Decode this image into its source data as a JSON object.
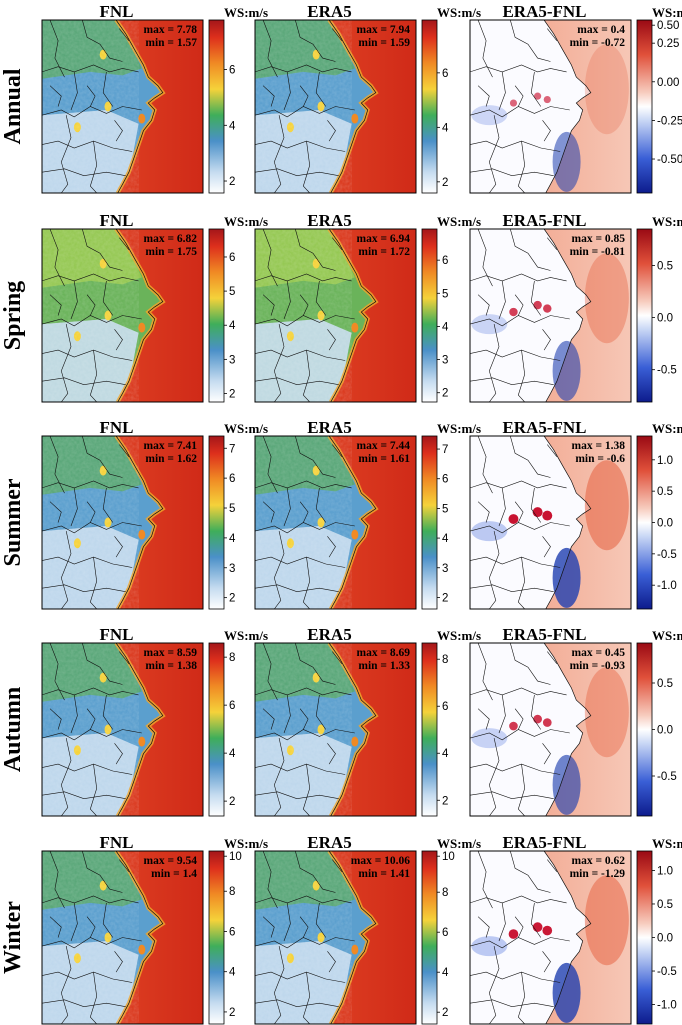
{
  "chart_data": {
    "type": "heatmap",
    "rows": [
      "Annual",
      "Spring",
      "Summer",
      "Autumn",
      "Winter"
    ],
    "columns": [
      "FNL",
      "ERA5",
      "ERA5-FNL"
    ],
    "colorbar_unit": "WS:m/s",
    "colors": {
      "sea": "#e03a1e",
      "land_low": "#c9ddf0",
      "land_mid": "#5b9fce",
      "coast": "#6ab35a",
      "diff_pos": "#c8102e",
      "diff_neg": "#1f3fb0",
      "diff_zero": "#ffffff",
      "boundary": "#111111"
    },
    "panels": [
      {
        "row": "Annual",
        "column": "FNL",
        "max": "max = 7.78",
        "min": "min = 1.57",
        "cbar_ticks": [
          "2",
          "4",
          "6"
        ],
        "range": [
          1.57,
          7.78
        ],
        "land_level": 0.28
      },
      {
        "row": "Annual",
        "column": "ERA5",
        "max": "max = 7.94",
        "min": "min = 1.59",
        "cbar_ticks": [
          "2",
          "4",
          "6"
        ],
        "range": [
          1.59,
          7.94
        ],
        "land_level": 0.28
      },
      {
        "row": "Annual",
        "column": "ERA5-FNL",
        "max": "max = 0.4",
        "min": "min = -0.72",
        "cbar_ticks": [
          "0.50",
          "0.25",
          "0.00",
          "-0.25",
          "-0.50"
        ],
        "range": [
          -0.72,
          0.4
        ],
        "land_level": 0.5
      },
      {
        "row": "Spring",
        "column": "FNL",
        "max": "max = 6.82",
        "min": "min = 1.75",
        "cbar_ticks": [
          "2",
          "3",
          "4",
          "5",
          "6"
        ],
        "range": [
          1.75,
          6.82
        ],
        "land_level": 0.38
      },
      {
        "row": "Spring",
        "column": "ERA5",
        "max": "max = 6.94",
        "min": "min = 1.72",
        "cbar_ticks": [
          "2",
          "3",
          "4",
          "5",
          "6"
        ],
        "range": [
          1.72,
          6.94
        ],
        "land_level": 0.38
      },
      {
        "row": "Spring",
        "column": "ERA5-FNL",
        "max": "max = 0.85",
        "min": "min = -0.81",
        "cbar_ticks": [
          "0.5",
          "0.0",
          "-0.5"
        ],
        "range": [
          -0.81,
          0.85
        ],
        "land_level": 0.5
      },
      {
        "row": "Summer",
        "column": "FNL",
        "max": "max = 7.41",
        "min": "min = 1.62",
        "cbar_ticks": [
          "2",
          "3",
          "4",
          "5",
          "6",
          "7"
        ],
        "range": [
          1.62,
          7.41
        ],
        "land_level": 0.32
      },
      {
        "row": "Summer",
        "column": "ERA5",
        "max": "max = 7.44",
        "min": "min = 1.61",
        "cbar_ticks": [
          "2",
          "3",
          "4",
          "5",
          "6",
          "7"
        ],
        "range": [
          1.61,
          7.44
        ],
        "land_level": 0.32
      },
      {
        "row": "Summer",
        "column": "ERA5-FNL",
        "max": "max = 1.38",
        "min": "min = -0.6",
        "cbar_ticks": [
          "1.0",
          "0.5",
          "0.0",
          "-0.5",
          "-1.0"
        ],
        "range": [
          -1.38,
          1.38
        ],
        "land_level": 0.5
      },
      {
        "row": "Autumn",
        "column": "FNL",
        "max": "max = 8.59",
        "min": "min = 1.38",
        "cbar_ticks": [
          "2",
          "4",
          "6",
          "8"
        ],
        "range": [
          1.38,
          8.59
        ],
        "land_level": 0.26
      },
      {
        "row": "Autumn",
        "column": "ERA5",
        "max": "max = 8.69",
        "min": "min = 1.33",
        "cbar_ticks": [
          "2",
          "4",
          "6",
          "8"
        ],
        "range": [
          1.33,
          8.69
        ],
        "land_level": 0.26
      },
      {
        "row": "Autumn",
        "column": "ERA5-FNL",
        "max": "max = 0.45",
        "min": "min = -0.93",
        "cbar_ticks": [
          "0.5",
          "0.0",
          "-0.5"
        ],
        "range": [
          -0.93,
          0.93
        ],
        "land_level": 0.5
      },
      {
        "row": "Winter",
        "column": "FNL",
        "max": "max = 9.54",
        "min": "min = 1.4",
        "cbar_ticks": [
          "2",
          "4",
          "6",
          "8",
          "10"
        ],
        "range": [
          1.4,
          10
        ],
        "land_level": 0.3
      },
      {
        "row": "Winter",
        "column": "ERA5",
        "max": "max = 10.06",
        "min": "min = 1.41",
        "cbar_ticks": [
          "2",
          "4",
          "6",
          "8",
          "10"
        ],
        "range": [
          1.41,
          10.06
        ],
        "land_level": 0.3
      },
      {
        "row": "Winter",
        "column": "ERA5-FNL",
        "max": "max = 0.62",
        "min": "min = -1.29",
        "cbar_ticks": [
          "1.0",
          "0.5",
          "0.0",
          "-0.5",
          "-1.0"
        ],
        "range": [
          -1.29,
          1.29
        ],
        "land_level": 0.5
      }
    ]
  }
}
